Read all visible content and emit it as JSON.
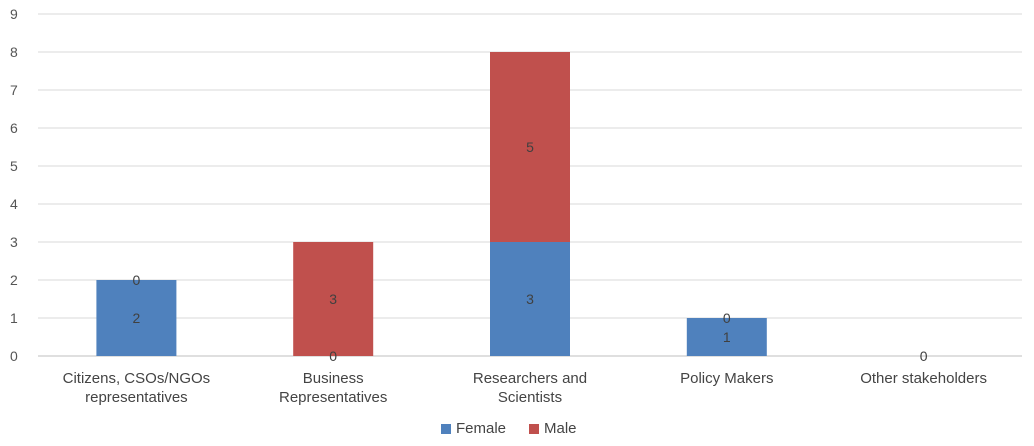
{
  "chart_data": {
    "type": "bar",
    "stacked": true,
    "categories": [
      [
        "Citizens, CSOs/NGOs",
        "representatives"
      ],
      [
        "Business",
        "Representatives"
      ],
      [
        "Researchers and",
        "Scientists"
      ],
      [
        "Policy Makers"
      ],
      [
        "Other stakeholders"
      ]
    ],
    "series": [
      {
        "name": "Female",
        "color": "#4f81bd",
        "values": [
          2,
          0,
          3,
          1,
          0
        ]
      },
      {
        "name": "Male",
        "color": "#c0504d",
        "values": [
          0,
          3,
          5,
          0,
          0
        ]
      }
    ],
    "data_labels": {
      "Female": [
        "2",
        "0",
        "3",
        "1",
        ""
      ],
      "Male": [
        "0",
        "3",
        "5",
        "0",
        "0"
      ]
    },
    "ylim": [
      0,
      9
    ],
    "yticks": [
      0,
      1,
      2,
      3,
      4,
      5,
      6,
      7,
      8,
      9
    ],
    "grid": true,
    "legend_position": "bottom"
  }
}
